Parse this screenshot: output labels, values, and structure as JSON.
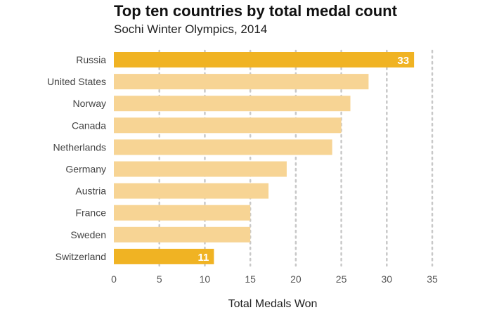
{
  "title": "Top ten countries by total medal count",
  "subtitle": "Sochi Winter Olympics, 2014",
  "colors": {
    "bar": "#f7d494",
    "highlight": "#f0b323",
    "grid": "#c8c8c8",
    "axis_text": "#555555"
  },
  "chart_data": {
    "type": "bar",
    "orientation": "horizontal",
    "title": "Top ten countries by total medal count",
    "subtitle": "Sochi Winter Olympics, 2014",
    "categories": [
      "Russia",
      "United States",
      "Norway",
      "Canada",
      "Netherlands",
      "Germany",
      "Austria",
      "France",
      "Sweden",
      "Switzerland"
    ],
    "values": [
      33,
      28,
      26,
      25,
      24,
      19,
      17,
      15,
      15,
      11
    ],
    "highlighted": [
      "Russia",
      "Switzerland"
    ],
    "data_labels": {
      "Russia": "33",
      "Switzerland": "11"
    },
    "xlabel": "Total Medals Won",
    "ylabel": "",
    "xlim": [
      0,
      35
    ],
    "xticks": [
      0,
      5,
      10,
      15,
      20,
      25,
      30,
      35
    ],
    "grid": "vertical dotted"
  }
}
